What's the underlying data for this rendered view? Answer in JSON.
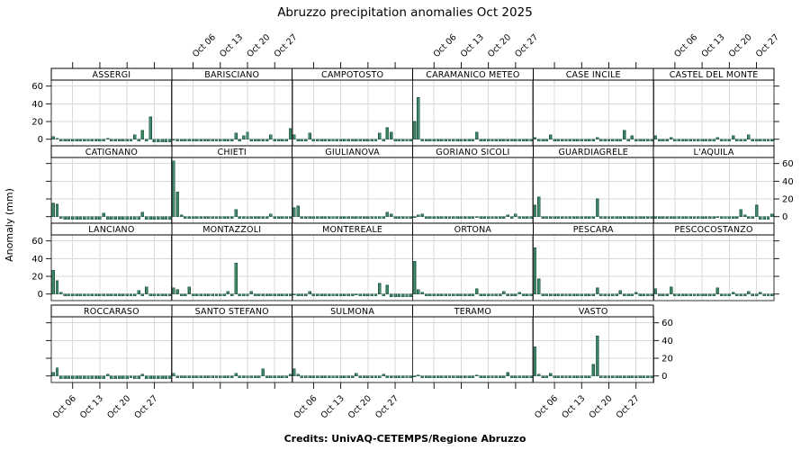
{
  "title": "Abruzzo precipitation anomalies Oct 2025",
  "credits": "Credits: UnivAQ-CETEMPS/Regione Abruzzo",
  "chart_data": {
    "type": "bar",
    "title": "Abruzzo precipitation anomalies Oct 2025",
    "ylabel": "Anomaly (mm)",
    "x_tick_labels": [
      "Oct 06",
      "Oct 13",
      "Oct 20",
      "Oct 27"
    ],
    "x_tick_days": [
      6,
      13,
      20,
      27
    ],
    "days_in_month": 31,
    "yticks": [
      0,
      20,
      40,
      60
    ],
    "ylim": [
      -7.4,
      66.8
    ],
    "grid": true,
    "legend": "none",
    "layout": {
      "columns": 6,
      "rows": 4,
      "top_label_columns": [
        2,
        4,
        6
      ],
      "bottom_label_columns": [
        1,
        3,
        5
      ],
      "left_label_rows": [
        1,
        3
      ],
      "right_label_rows": [
        2,
        4
      ]
    },
    "colors": {
      "bar_fill": "#44896C",
      "bar_edge": "#1E5A42",
      "grid": "#d9d9d9",
      "panel_border": "#333333",
      "strip_bg": "#ffffff",
      "strip_border": "#000000",
      "text": "#000000"
    },
    "panels": [
      {
        "name": "ASSERGI",
        "values": [
          3,
          1,
          -2,
          -2,
          -2,
          -2,
          -2,
          -2,
          -2,
          -2,
          -2,
          -2,
          -2,
          -2,
          1,
          -2,
          -2,
          -2,
          -2,
          -2,
          -2,
          5,
          -2,
          10,
          -2,
          25,
          -3,
          -3,
          -3,
          -3,
          -3
        ]
      },
      {
        "name": "BARISCIANO",
        "values": [
          -1,
          -2,
          -2,
          -2,
          -2,
          -2,
          -2,
          -2,
          -2,
          -2,
          -2,
          -2,
          -2,
          -2,
          -2,
          -2,
          7,
          -2,
          4,
          8,
          -2,
          -2,
          -2,
          -2,
          -2,
          5,
          -2,
          -2,
          -2,
          -2,
          12
        ]
      },
      {
        "name": "CAMPOTOSTO",
        "values": [
          5,
          -2,
          -2,
          -2,
          7,
          -2,
          -2,
          -2,
          -2,
          -2,
          -2,
          -2,
          -2,
          -2,
          -2,
          -2,
          -2,
          -2,
          -2,
          -2,
          -2,
          -2,
          7,
          -2,
          13,
          8,
          -2,
          -2,
          -2,
          -2,
          -2
        ]
      },
      {
        "name": "CARAMANICO METEO",
        "values": [
          20,
          47,
          -2,
          -2,
          -2,
          -2,
          -2,
          -2,
          -2,
          -2,
          -2,
          -2,
          -2,
          -2,
          -2,
          -2,
          8,
          -2,
          -2,
          -2,
          -2,
          -2,
          -2,
          -2,
          -2,
          -2,
          -2,
          -2,
          -2,
          -2,
          -2
        ]
      },
      {
        "name": "CASE INCILE",
        "values": [
          2,
          -2,
          -2,
          -2,
          5,
          -2,
          -2,
          -2,
          -2,
          -2,
          -2,
          -2,
          -2,
          -2,
          -2,
          -2,
          2,
          -2,
          -2,
          -2,
          -2,
          -2,
          -2,
          10,
          -2,
          4,
          -2,
          -2,
          -2,
          -2,
          -2
        ]
      },
      {
        "name": "CASTEL DEL MONTE",
        "values": [
          4,
          -2,
          -2,
          -2,
          2,
          -2,
          -2,
          -2,
          -2,
          -2,
          -2,
          -2,
          -2,
          -2,
          -2,
          -2,
          2,
          -2,
          -2,
          -2,
          4,
          -2,
          -2,
          -2,
          5,
          -2,
          -2,
          -2,
          -2,
          -2,
          -2
        ]
      },
      {
        "name": "CATIGNANO",
        "values": [
          15,
          14,
          -2,
          -3,
          -3,
          -3,
          -3,
          -3,
          -3,
          -3,
          -3,
          -3,
          -3,
          4,
          -3,
          -3,
          -3,
          -3,
          -3,
          -3,
          -3,
          -3,
          -3,
          5,
          -3,
          -3,
          -3,
          -3,
          -3,
          -3,
          -3
        ]
      },
      {
        "name": "CHIETI",
        "values": [
          63,
          28,
          2,
          -2,
          -2,
          -2,
          -2,
          -2,
          -2,
          -2,
          -2,
          -2,
          -2,
          -2,
          -2,
          -2,
          8,
          -2,
          -2,
          -2,
          -2,
          -2,
          -2,
          -2,
          -2,
          3,
          -2,
          -2,
          -2,
          -2,
          -2
        ]
      },
      {
        "name": "GIULIANOVA",
        "values": [
          10,
          12,
          -2,
          -2,
          -2,
          -2,
          -2,
          -2,
          -2,
          -2,
          -2,
          -2,
          -2,
          -2,
          -2,
          -2,
          -2,
          -2,
          -2,
          -2,
          -2,
          -2,
          -2,
          -2,
          5,
          3,
          -2,
          -2,
          -2,
          -2,
          -2
        ]
      },
      {
        "name": "GORIANO SICOLI",
        "values": [
          -1,
          2,
          3,
          -2,
          -2,
          -2,
          -2,
          -2,
          -2,
          -2,
          -2,
          -2,
          -2,
          -2,
          -2,
          -2,
          -1,
          -2,
          -2,
          -2,
          -2,
          -2,
          -2,
          -2,
          2,
          -2,
          3,
          -2,
          -2,
          -2,
          -2
        ]
      },
      {
        "name": "GUARDIAGRELE",
        "values": [
          13,
          22,
          -2,
          -2,
          -2,
          -2,
          -2,
          -2,
          -2,
          -2,
          -2,
          -2,
          -2,
          -2,
          -2,
          -2,
          20,
          -2,
          -2,
          -2,
          -2,
          -2,
          -2,
          -2,
          -2,
          -2,
          -2,
          -2,
          -2,
          -2,
          -2
        ]
      },
      {
        "name": "L'AQUILA",
        "values": [
          -2,
          -2,
          -2,
          -2,
          -2,
          -2,
          -2,
          -2,
          -2,
          -2,
          -2,
          -2,
          -2,
          -2,
          -2,
          -2,
          -1,
          -2,
          -2,
          -2,
          -2,
          -2,
          8,
          2,
          -2,
          -2,
          13,
          -3,
          -3,
          -3,
          3
        ]
      },
      {
        "name": "LANCIANO",
        "values": [
          27,
          15,
          2,
          -2,
          -2,
          -2,
          -2,
          -2,
          -2,
          -2,
          -2,
          -2,
          -2,
          -2,
          -2,
          -2,
          -2,
          -2,
          -2,
          -2,
          -2,
          -2,
          4,
          -2,
          8,
          -2,
          -2,
          -2,
          -2,
          -2,
          -2
        ]
      },
      {
        "name": "MONTAZZOLI",
        "values": [
          7,
          5,
          -2,
          -2,
          8,
          -2,
          -2,
          -2,
          -2,
          -2,
          -2,
          -2,
          -2,
          -2,
          3,
          -2,
          35,
          -2,
          -2,
          -2,
          3,
          -2,
          -2,
          -2,
          -2,
          -2,
          -2,
          -2,
          -2,
          -2,
          -2
        ]
      },
      {
        "name": "MONTEREALE",
        "values": [
          -1,
          -2,
          -2,
          -2,
          3,
          -2,
          -2,
          -2,
          -2,
          -2,
          -2,
          -2,
          -2,
          -2,
          -2,
          -2,
          -1,
          -2,
          -2,
          -2,
          -2,
          -2,
          12,
          -2,
          10,
          -3,
          -3,
          -3,
          -3,
          -3,
          -3
        ]
      },
      {
        "name": "ORTONA",
        "values": [
          37,
          5,
          2,
          -2,
          -2,
          -2,
          -2,
          -2,
          -2,
          -2,
          -2,
          -2,
          -2,
          -2,
          -2,
          -2,
          6,
          -2,
          -2,
          -2,
          -2,
          -2,
          -2,
          3,
          -2,
          -2,
          -2,
          2,
          -2,
          -2,
          -2
        ]
      },
      {
        "name": "PESCARA",
        "values": [
          52,
          17,
          -2,
          -2,
          -2,
          -2,
          -2,
          -2,
          -2,
          -2,
          -2,
          -2,
          -2,
          -2,
          -2,
          -2,
          7,
          -2,
          -2,
          -2,
          -2,
          -2,
          4,
          -2,
          -2,
          -2,
          2,
          -2,
          -2,
          -2,
          -2
        ]
      },
      {
        "name": "PESCOCOSTANZO",
        "values": [
          6,
          -2,
          -2,
          -2,
          8,
          -2,
          -2,
          -2,
          -2,
          -2,
          -2,
          -2,
          -2,
          -2,
          -2,
          -2,
          7,
          -2,
          -2,
          -2,
          2,
          -2,
          -2,
          -2,
          3,
          -2,
          -2,
          2,
          -2,
          -2,
          -2
        ]
      },
      {
        "name": "ROCCARASO",
        "values": [
          4,
          9,
          -3,
          -3,
          -3,
          -3,
          -3,
          -3,
          -3,
          -3,
          -3,
          -3,
          -3,
          -3,
          2,
          -3,
          -3,
          -3,
          -3,
          -3,
          -2,
          -3,
          -3,
          2,
          -3,
          -3,
          -3,
          -3,
          -3,
          -3,
          -3
        ]
      },
      {
        "name": "SANTO STEFANO",
        "values": [
          3,
          -2,
          -2,
          -2,
          -2,
          -2,
          -2,
          -2,
          -2,
          -2,
          -2,
          -2,
          -2,
          -2,
          -2,
          -2,
          3,
          -2,
          -2,
          -2,
          -2,
          -2,
          -2,
          8,
          -2,
          -2,
          -2,
          -2,
          -2,
          -2,
          2
        ]
      },
      {
        "name": "SULMONA",
        "values": [
          8,
          2,
          -2,
          -2,
          -2,
          -2,
          -2,
          -2,
          -2,
          -2,
          -2,
          -2,
          -2,
          -2,
          -2,
          -2,
          3,
          -2,
          -2,
          -2,
          -2,
          -2,
          -2,
          2,
          -2,
          -2,
          -2,
          -2,
          -2,
          -2,
          -2
        ]
      },
      {
        "name": "TERAMO",
        "values": [
          -1,
          1,
          -2,
          -2,
          -2,
          -2,
          -2,
          -2,
          -2,
          -2,
          -2,
          -2,
          -2,
          -2,
          -2,
          -2,
          1,
          -2,
          -2,
          -2,
          -2,
          -2,
          -2,
          -2,
          4,
          -2,
          -2,
          -2,
          -2,
          -2,
          -2
        ]
      },
      {
        "name": "VASTO",
        "values": [
          33,
          2,
          -2,
          -2,
          3,
          -2,
          -2,
          -2,
          -2,
          -2,
          -2,
          -2,
          -2,
          -2,
          -2,
          13,
          45,
          -2,
          -2,
          -2,
          -2,
          -2,
          -2,
          -2,
          -2,
          -2,
          -2,
          -2,
          -2,
          -2,
          -2
        ]
      }
    ]
  }
}
